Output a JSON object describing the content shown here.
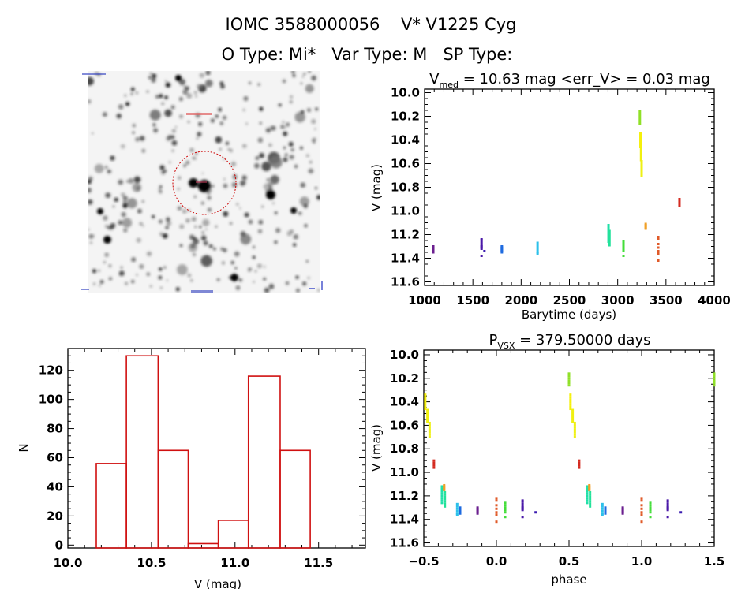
{
  "header": {
    "title_line1": "IOMC 3588000056    V* V1225 Cyg",
    "title_line2": "O Type: Mi*   Var Type: M   SP Type:"
  },
  "sky_image": {
    "marker_color": "#cc0000",
    "label_color": "#2030c0"
  },
  "chart_data": [
    {
      "type": "scatter",
      "name": "light-curve",
      "title_main": "V",
      "title_sub": "med",
      "title_rest": " = 10.63 mag <err_V> = 0.03 mag",
      "xlabel": "Barytime (days)",
      "ylabel": "V (mag)",
      "xlim": [
        1000,
        4000
      ],
      "ylim": [
        11.63,
        9.97
      ],
      "y_reversed": true,
      "xticks": [
        1000,
        1500,
        2000,
        2500,
        3000,
        3500,
        4000
      ],
      "xtick_labels": [
        "1000",
        "1500",
        "2000",
        "2500",
        "3000",
        "3500",
        "4000"
      ],
      "yticks": [
        10.0,
        10.2,
        10.4,
        10.6,
        10.8,
        11.0,
        11.2,
        11.4,
        11.6
      ],
      "ytick_labels": [
        "10.0",
        "10.2",
        "10.4",
        "10.6",
        "10.8",
        "11.0",
        "11.2",
        "11.4",
        "11.6"
      ]
    },
    {
      "type": "scatter",
      "name": "phased-light-curve",
      "title_main": "P",
      "title_sub": "VSX",
      "title_rest": " = 379.50000 days",
      "xlabel": "phase",
      "ylabel": "V (mag)",
      "xlim": [
        -0.5,
        1.5
      ],
      "ylim": [
        11.63,
        9.96
      ],
      "y_reversed": true,
      "xticks": [
        -0.5,
        0.0,
        0.5,
        1.0,
        1.5
      ],
      "xtick_labels": [
        "−0.5",
        "0.0",
        "0.5",
        "1.0",
        "1.5"
      ],
      "yticks": [
        10.0,
        10.2,
        10.4,
        10.6,
        10.8,
        11.0,
        11.2,
        11.4,
        11.6
      ],
      "ytick_labels": [
        "10.0",
        "10.2",
        "10.4",
        "10.6",
        "10.8",
        "11.0",
        "11.2",
        "11.4",
        "11.6"
      ]
    },
    {
      "type": "bar",
      "name": "histogram",
      "xlabel": "V (mag)",
      "ylabel": "N",
      "xlim": [
        10.0,
        11.78
      ],
      "ylim": [
        -2,
        135
      ],
      "bin_edges": [
        10.17,
        10.35,
        10.54,
        10.72,
        10.9,
        11.08,
        11.27,
        11.45
      ],
      "values": [
        56,
        130,
        65,
        1,
        17,
        116,
        65
      ],
      "bar_color": "#d01010",
      "xticks": [
        10.0,
        10.5,
        11.0,
        11.5
      ],
      "xtick_labels": [
        "10.0",
        "10.5",
        "11.0",
        "11.5"
      ],
      "yticks": [
        0,
        20,
        40,
        60,
        80,
        100,
        120
      ],
      "ytick_labels": [
        "0",
        "20",
        "40",
        "60",
        "80",
        "100",
        "120"
      ]
    }
  ],
  "observations": [
    {
      "t": 1090,
      "phase": -0.13,
      "color": "#6b1f8f",
      "v": [
        11.3,
        11.31,
        11.32,
        11.33,
        11.34,
        11.35
      ]
    },
    {
      "t": 1590,
      "phase": 0.18,
      "color": "#4a18a8",
      "v": [
        11.24,
        11.25,
        11.27,
        11.29,
        11.3,
        11.31,
        11.32,
        11.38
      ]
    },
    {
      "t": 1620,
      "phase": 0.27,
      "color": "#3a1cb0",
      "v": [
        11.34
      ]
    },
    {
      "t": 1800,
      "phase": -0.25,
      "color": "#1e6be0",
      "v": [
        11.3,
        11.31,
        11.32,
        11.33,
        11.34,
        11.35
      ]
    },
    {
      "t": 2170,
      "phase": -0.27,
      "color": "#2cc0ea",
      "v": [
        11.27,
        11.29,
        11.31,
        11.33,
        11.35,
        11.36
      ]
    },
    {
      "t": 2905,
      "phase": -0.375,
      "color": "#20e0a8",
      "v": [
        11.12,
        11.14,
        11.16,
        11.18,
        11.2,
        11.22,
        11.24,
        11.26
      ]
    },
    {
      "t": 2915,
      "phase": -0.355,
      "color": "#22e29a",
      "v": [
        11.17,
        11.19,
        11.21,
        11.23,
        11.25,
        11.27,
        11.29
      ]
    },
    {
      "t": 3060,
      "phase": 0.06,
      "color": "#44dd3a",
      "v": [
        11.26,
        11.28,
        11.3,
        11.32,
        11.34,
        11.38
      ]
    },
    {
      "t": 3230,
      "phase": 0.5,
      "color": "#90e028",
      "v": [
        10.16,
        10.18,
        10.2,
        10.22,
        10.24,
        10.26
      ]
    },
    {
      "t": 3236,
      "phase": -0.49,
      "color": "#f5f00a",
      "v": [
        10.34,
        10.36,
        10.38,
        10.4,
        10.42,
        10.44,
        10.46
      ]
    },
    {
      "t": 3242,
      "phase": -0.475,
      "color": "#f0f010",
      "v": [
        10.47,
        10.49,
        10.51,
        10.53,
        10.55,
        10.57
      ]
    },
    {
      "t": 3248,
      "phase": -0.46,
      "color": "#eef014",
      "v": [
        10.58,
        10.6,
        10.62,
        10.64,
        10.66,
        10.68,
        10.7
      ]
    },
    {
      "t": 3290,
      "phase": -0.36,
      "color": "#f0a028",
      "v": [
        11.11,
        11.12,
        11.13,
        11.14,
        11.15
      ]
    },
    {
      "t": 3420,
      "phase": 0.0,
      "color": "#e05a28",
      "v": [
        11.22,
        11.24,
        11.28,
        11.31,
        11.34,
        11.36,
        11.42
      ]
    },
    {
      "t": 3640,
      "phase": -0.43,
      "color": "#d42a20",
      "v": [
        10.9,
        10.92,
        10.94,
        10.96
      ]
    }
  ]
}
